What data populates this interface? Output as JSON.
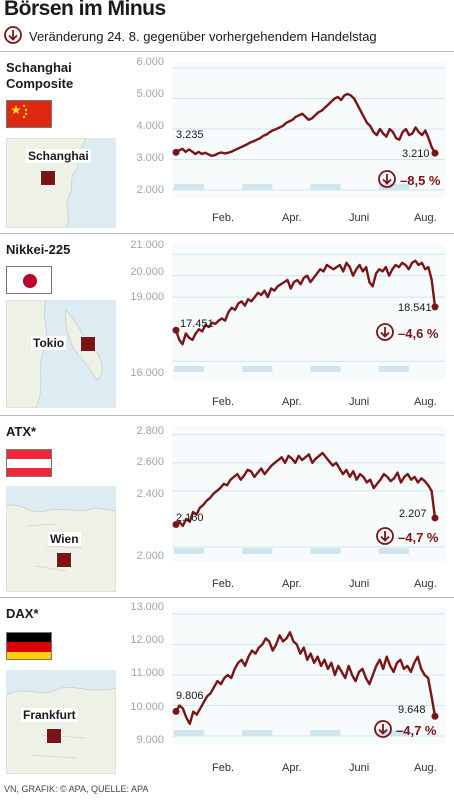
{
  "title": "Börsen im Minus",
  "subtitle": "Veränderung 24. 8. gegenüber vorhergehendem Handelstag",
  "credit": "VN, GRAFIK: © APA, QUELLE: APA",
  "colors": {
    "line": "#7b1416",
    "accent": "#7b1416",
    "grid": "#cfe6ee",
    "band": "#cfe6ee"
  },
  "icons": {
    "down": "down-arrow-circle-icon"
  },
  "x_ticks": [
    "Feb.",
    "Apr.",
    "Juni",
    "Aug."
  ],
  "chart_data": [
    {
      "type": "line",
      "name": "Schanghai Composite",
      "city": "Schanghai",
      "flag": "china",
      "yticks": [
        "6.000",
        "5.000",
        "4.000",
        "3.000",
        "2.000"
      ],
      "ylim": [
        2000,
        6000
      ],
      "start_label": "3.235",
      "end_label": "3.210",
      "change": "–8,5 %",
      "start": 3235,
      "end": 3210,
      "values": [
        3235,
        3300,
        3350,
        3250,
        3330,
        3260,
        3180,
        3250,
        3180,
        3220,
        3170,
        3120,
        3140,
        3200,
        3230,
        3200,
        3220,
        3250,
        3300,
        3350,
        3400,
        3450,
        3500,
        3560,
        3600,
        3650,
        3700,
        3780,
        3820,
        3900,
        3960,
        4000,
        4050,
        4100,
        4200,
        4250,
        4300,
        4400,
        4450,
        4500,
        4400,
        4300,
        4350,
        4450,
        4550,
        4600,
        4700,
        4800,
        4900,
        5000,
        5050,
        4950,
        5100,
        5150,
        5100,
        5000,
        4800,
        4600,
        4400,
        4200,
        4100,
        3900,
        3800,
        4000,
        3850,
        3750,
        4000,
        3900,
        3700,
        3650,
        3900,
        4000,
        3800,
        3850,
        4050,
        3900,
        3800,
        3950,
        3700,
        3400,
        3210
      ],
      "grid": true
    },
    {
      "type": "line",
      "name": "Nikkei-225",
      "city": "Tokio",
      "flag": "japan",
      "yticks": [
        "21.000",
        "20.000",
        "19.000",
        "16.000"
      ],
      "tick_values": [
        21000,
        20000,
        19000,
        16000
      ],
      "ylim": [
        15500,
        21200
      ],
      "start_label": "17.451",
      "end_label": "18.541",
      "change": "–4,6 %",
      "start": 17451,
      "end": 18541,
      "values": [
        17451,
        17000,
        16800,
        17300,
        17100,
        17000,
        17300,
        17500,
        17400,
        17700,
        17600,
        17800,
        17750,
        17900,
        18000,
        17900,
        18300,
        18500,
        18400,
        18700,
        18800,
        18600,
        18900,
        18800,
        19000,
        19200,
        19100,
        19300,
        19000,
        19400,
        19300,
        19500,
        19600,
        19700,
        19800,
        19400,
        19700,
        19800,
        19600,
        19900,
        20000,
        19700,
        19900,
        20100,
        20300,
        20200,
        20500,
        20400,
        20300,
        20400,
        20500,
        20200,
        20600,
        20400,
        20000,
        20300,
        20500,
        20200,
        20400,
        19700,
        19500,
        20100,
        20300,
        20200,
        20400,
        20000,
        20300,
        20500,
        20400,
        20600,
        20500,
        20300,
        20600,
        20700,
        20500,
        20600,
        20300,
        20400,
        19800,
        18541
      ],
      "grid": true
    },
    {
      "type": "line",
      "name": "ATX*",
      "city": "Wien",
      "flag": "austria",
      "yticks": [
        "2.800",
        "2.600",
        "2.400",
        "2.000"
      ],
      "tick_values": [
        2800,
        2600,
        2400,
        2000
      ],
      "ylim": [
        1950,
        2820
      ],
      "start_label": "2.160",
      "end_label": "2.207",
      "change": "–4,7 %",
      "start": 2160,
      "end": 2207,
      "values": [
        2160,
        2180,
        2150,
        2200,
        2180,
        2250,
        2230,
        2280,
        2300,
        2330,
        2350,
        2380,
        2400,
        2420,
        2450,
        2440,
        2480,
        2500,
        2520,
        2480,
        2510,
        2550,
        2540,
        2500,
        2530,
        2560,
        2520,
        2550,
        2580,
        2600,
        2620,
        2640,
        2600,
        2650,
        2630,
        2600,
        2650,
        2620,
        2640,
        2660,
        2600,
        2630,
        2650,
        2670,
        2640,
        2610,
        2580,
        2600,
        2560,
        2520,
        2550,
        2500,
        2540,
        2480,
        2520,
        2500,
        2460,
        2480,
        2420,
        2450,
        2480,
        2520,
        2500,
        2470,
        2490,
        2530,
        2460,
        2500,
        2520,
        2480,
        2500,
        2460,
        2490,
        2470,
        2440,
        2400,
        2207
      ],
      "grid": true
    },
    {
      "type": "line",
      "name": "DAX*",
      "city": "Frankfurt",
      "flag": "germany",
      "yticks": [
        "13.000",
        "12.000",
        "11.000",
        "10.000",
        "9.000"
      ],
      "ylim": [
        9000,
        13000
      ],
      "start_label": "9.806",
      "end_label": "9.648",
      "change": "–4,7 %",
      "start": 9806,
      "end": 9648,
      "values": [
        9806,
        10000,
        9900,
        9600,
        9400,
        9800,
        9700,
        9900,
        10100,
        10300,
        10400,
        10600,
        10800,
        10700,
        10900,
        11000,
        10900,
        11200,
        11400,
        11500,
        11300,
        11600,
        11800,
        11700,
        11900,
        12000,
        12200,
        12100,
        11800,
        12000,
        12300,
        12100,
        12200,
        12400,
        12100,
        12000,
        11700,
        11900,
        11500,
        11700,
        11400,
        11600,
        11300,
        11500,
        11200,
        11400,
        11000,
        11300,
        11100,
        10900,
        11300,
        11000,
        10800,
        11100,
        11200,
        10900,
        10700,
        11000,
        11300,
        11500,
        11200,
        11600,
        11300,
        11100,
        11400,
        11500,
        11200,
        11300,
        11100,
        11400,
        11600,
        11200,
        11000,
        10900,
        10300,
        9648
      ],
      "grid": true
    }
  ]
}
